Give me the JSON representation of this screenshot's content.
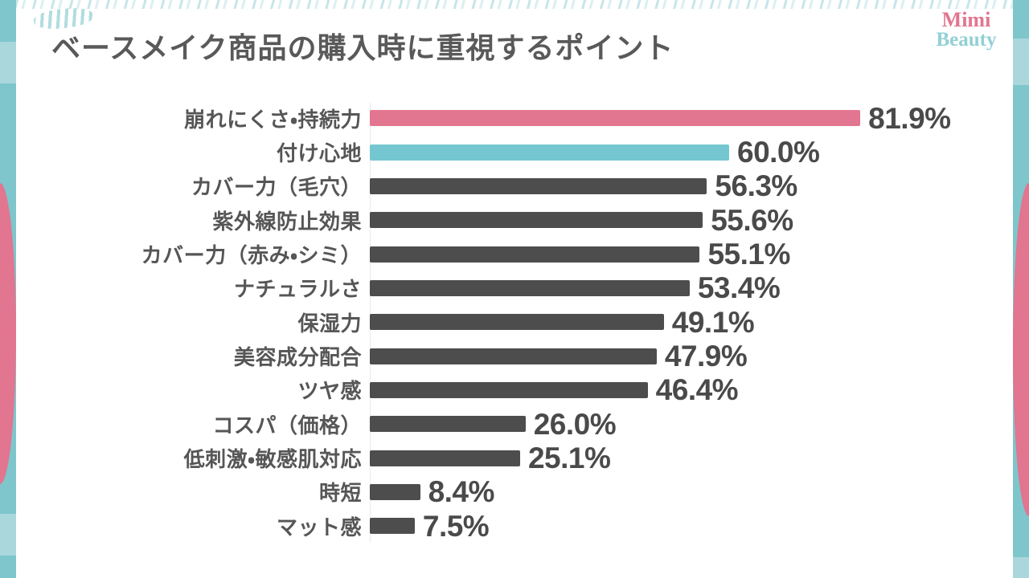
{
  "page": {
    "title": "ベースメイク商品の購入時に重視するポイント"
  },
  "brand": {
    "name_line1": "Mimi",
    "name_line2": "Beauty",
    "line1_color": "#e2758f",
    "line2_color": "#92d0d4"
  },
  "theme": {
    "background": "#ffffff",
    "edge_teal": "#7fc5cc",
    "edge_teal_light": "#a9d7db",
    "edge_pink": "#e2758f",
    "title_text": "#595959",
    "label_text": "#565656",
    "value_text": "#4a4a4a",
    "axis_line": "#e9e9e9"
  },
  "chart_data": {
    "type": "bar",
    "orientation": "horizontal",
    "title": "ベースメイク商品の購入時に重視するポイント",
    "unit": "%",
    "xlim": [
      0,
      100
    ],
    "grid": false,
    "legend": false,
    "categories": [
      "崩れにくさ・持続力",
      "付け心地",
      "カバー力（毛穴）",
      "紫外線防止効果",
      "カバー力（赤み・シミ）",
      "ナチュラルさ",
      "保湿力",
      "美容成分配合",
      "ツヤ感",
      "コスパ（価格）",
      "低刺激・敏感肌対応",
      "時短",
      "マット感"
    ],
    "values": [
      81.9,
      60.0,
      56.3,
      55.6,
      55.1,
      53.4,
      49.1,
      47.9,
      46.4,
      26.0,
      25.1,
      8.4,
      7.5
    ],
    "value_labels": [
      "81.9%",
      "60.0%",
      "56.3%",
      "55.6%",
      "55.1%",
      "53.4%",
      "49.1%",
      "47.9%",
      "46.4%",
      "26.0%",
      "25.1%",
      "8.4%",
      "7.5%"
    ],
    "bar_colors": [
      "#e2758f",
      "#74c7d0",
      "#4d4d4d",
      "#4d4d4d",
      "#4d4d4d",
      "#4d4d4d",
      "#4d4d4d",
      "#4d4d4d",
      "#4d4d4d",
      "#4d4d4d",
      "#4d4d4d",
      "#4d4d4d",
      "#4d4d4d"
    ]
  }
}
